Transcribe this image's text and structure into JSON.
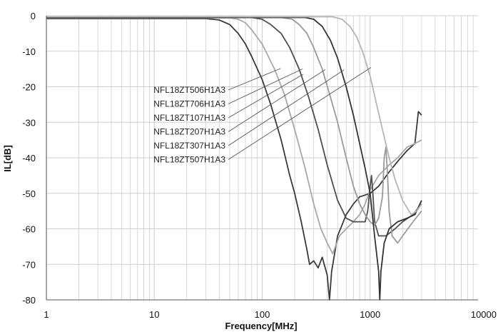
{
  "chart_data": {
    "type": "line",
    "title": "",
    "xlabel": "Frequency[MHz]",
    "ylabel": "IL[dB]",
    "x_scale": "log",
    "xlim": [
      1,
      10000
    ],
    "ylim": [
      -80,
      0
    ],
    "x_ticks": [
      1,
      10,
      100,
      1000,
      10000
    ],
    "x_tick_labels": [
      "1",
      "10",
      "100",
      "1000",
      "10000"
    ],
    "y_ticks": [
      0,
      -10,
      -20,
      -30,
      -40,
      -50,
      -60,
      -70,
      -80
    ],
    "y_tick_labels": [
      "0",
      "-10",
      "-20",
      "-30",
      "-40",
      "-50",
      "-60",
      "-70",
      "-80"
    ],
    "grid": true,
    "legend": "none",
    "series": [
      {
        "name": "NFL18ZT506H1A3",
        "color": "#3a3a3a",
        "points": [
          [
            1,
            -0.8
          ],
          [
            10,
            -0.8
          ],
          [
            30,
            -0.8
          ],
          [
            40,
            -1.2
          ],
          [
            50,
            -2.5
          ],
          [
            60,
            -5
          ],
          [
            70,
            -8
          ],
          [
            80,
            -11.5
          ],
          [
            100,
            -18
          ],
          [
            120,
            -25
          ],
          [
            150,
            -35
          ],
          [
            180,
            -45
          ],
          [
            200,
            -50
          ],
          [
            230,
            -58
          ],
          [
            260,
            -66
          ],
          [
            275,
            -70
          ],
          [
            300,
            -69
          ],
          [
            330,
            -71
          ],
          [
            360,
            -68
          ],
          [
            400,
            -73
          ],
          [
            420,
            -80
          ],
          [
            440,
            -72
          ],
          [
            500,
            -62
          ],
          [
            600,
            -56
          ],
          [
            700,
            -53
          ],
          [
            800,
            -51
          ],
          [
            1000,
            -50
          ],
          [
            1200,
            -48
          ],
          [
            1500,
            -44
          ],
          [
            1800,
            -41
          ],
          [
            2200,
            -38
          ],
          [
            2600,
            -36
          ],
          [
            2800,
            -27
          ],
          [
            3000,
            -28
          ]
        ]
      },
      {
        "name": "NFL18ZT706H1A3",
        "color": "#a8a8a8",
        "points": [
          [
            1,
            -0.6
          ],
          [
            10,
            -0.6
          ],
          [
            50,
            -0.6
          ],
          [
            60,
            -1
          ],
          [
            70,
            -2
          ],
          [
            80,
            -4
          ],
          [
            100,
            -8
          ],
          [
            130,
            -15
          ],
          [
            160,
            -22
          ],
          [
            200,
            -32
          ],
          [
            250,
            -43
          ],
          [
            300,
            -53
          ],
          [
            350,
            -60
          ],
          [
            400,
            -64
          ],
          [
            450,
            -67
          ],
          [
            520,
            -62
          ],
          [
            600,
            -60
          ],
          [
            700,
            -58
          ],
          [
            800,
            -56
          ],
          [
            900,
            -53
          ],
          [
            1000,
            -49
          ],
          [
            1200,
            -45
          ],
          [
            1500,
            -42
          ],
          [
            1800,
            -40
          ],
          [
            2200,
            -37
          ],
          [
            2600,
            -36
          ],
          [
            3000,
            -35
          ]
        ]
      },
      {
        "name": "NFL18ZT107H1A3",
        "color": "#4e4e4e",
        "points": [
          [
            1,
            -0.5
          ],
          [
            10,
            -0.5
          ],
          [
            80,
            -0.5
          ],
          [
            100,
            -1
          ],
          [
            120,
            -2.5
          ],
          [
            150,
            -5
          ],
          [
            180,
            -9
          ],
          [
            220,
            -15
          ],
          [
            270,
            -23
          ],
          [
            330,
            -32
          ],
          [
            400,
            -42
          ],
          [
            500,
            -52
          ],
          [
            600,
            -57
          ],
          [
            700,
            -58
          ],
          [
            800,
            -58
          ],
          [
            900,
            -58
          ],
          [
            950,
            -55
          ],
          [
            1000,
            -48
          ],
          [
            1030,
            -45
          ],
          [
            1060,
            -50
          ],
          [
            1100,
            -58
          ],
          [
            1200,
            -62
          ],
          [
            1400,
            -62
          ],
          [
            1700,
            -60
          ],
          [
            2000,
            -58
          ],
          [
            2500,
            -56
          ],
          [
            3000,
            -53
          ]
        ]
      },
      {
        "name": "NFL18ZT207H1A3",
        "color": "#9a9a9a",
        "points": [
          [
            1,
            -0.5
          ],
          [
            10,
            -0.5
          ],
          [
            150,
            -0.5
          ],
          [
            190,
            -1
          ],
          [
            220,
            -2.5
          ],
          [
            260,
            -5
          ],
          [
            300,
            -9
          ],
          [
            360,
            -15
          ],
          [
            420,
            -22
          ],
          [
            500,
            -30
          ],
          [
            600,
            -40
          ],
          [
            700,
            -48
          ],
          [
            800,
            -53
          ],
          [
            900,
            -56
          ],
          [
            1000,
            -58
          ],
          [
            1100,
            -59
          ],
          [
            1200,
            -57
          ],
          [
            1300,
            -51
          ],
          [
            1350,
            -40
          ],
          [
            1400,
            -37
          ],
          [
            1450,
            -45
          ],
          [
            1500,
            -55
          ],
          [
            1600,
            -62
          ],
          [
            1800,
            -64
          ],
          [
            2000,
            -62
          ],
          [
            2500,
            -58
          ],
          [
            3000,
            -55
          ]
        ]
      },
      {
        "name": "NFL18ZT307H1A3",
        "color": "#333333",
        "points": [
          [
            1,
            -0.5
          ],
          [
            10,
            -0.5
          ],
          [
            250,
            -0.5
          ],
          [
            300,
            -1
          ],
          [
            360,
            -3
          ],
          [
            430,
            -7
          ],
          [
            500,
            -12
          ],
          [
            600,
            -20
          ],
          [
            700,
            -28
          ],
          [
            800,
            -36
          ],
          [
            900,
            -43
          ],
          [
            1000,
            -50
          ],
          [
            1100,
            -62
          ],
          [
            1200,
            -72
          ],
          [
            1230,
            -80
          ],
          [
            1260,
            -72
          ],
          [
            1350,
            -64
          ],
          [
            1500,
            -60
          ],
          [
            1800,
            -58
          ],
          [
            2200,
            -57
          ],
          [
            2600,
            -56
          ],
          [
            3000,
            -52
          ]
        ]
      },
      {
        "name": "NFL18ZT507H1A3",
        "color": "#b5b5b5",
        "points": [
          [
            1,
            -0.3
          ],
          [
            10,
            -0.3
          ],
          [
            450,
            -0.3
          ],
          [
            550,
            -1
          ],
          [
            650,
            -3
          ],
          [
            750,
            -6
          ],
          [
            850,
            -10
          ],
          [
            1000,
            -17
          ],
          [
            1150,
            -25
          ],
          [
            1300,
            -32
          ],
          [
            1500,
            -40
          ],
          [
            1700,
            -46
          ],
          [
            2000,
            -52
          ],
          [
            2400,
            -56
          ],
          [
            2700,
            -55
          ],
          [
            3000,
            -53
          ]
        ]
      }
    ],
    "annotations": [
      {
        "label": "NFL18ZT506H1A3",
        "series": "NFL18ZT506H1A3"
      },
      {
        "label": "NFL18ZT706H1A3",
        "series": "NFL18ZT706H1A3"
      },
      {
        "label": "NFL18ZT107H1A3",
        "series": "NFL18ZT107H1A3"
      },
      {
        "label": "NFL18ZT207H1A3",
        "series": "NFL18ZT207H1A3"
      },
      {
        "label": "NFL18ZT307H1A3",
        "series": "NFL18ZT307H1A3"
      },
      {
        "label": "NFL18ZT507H1A3",
        "series": "NFL18ZT507H1A3"
      }
    ],
    "colors": {
      "grid": "#cfcfcf",
      "axis": "#555555",
      "leader": "#555555"
    }
  }
}
